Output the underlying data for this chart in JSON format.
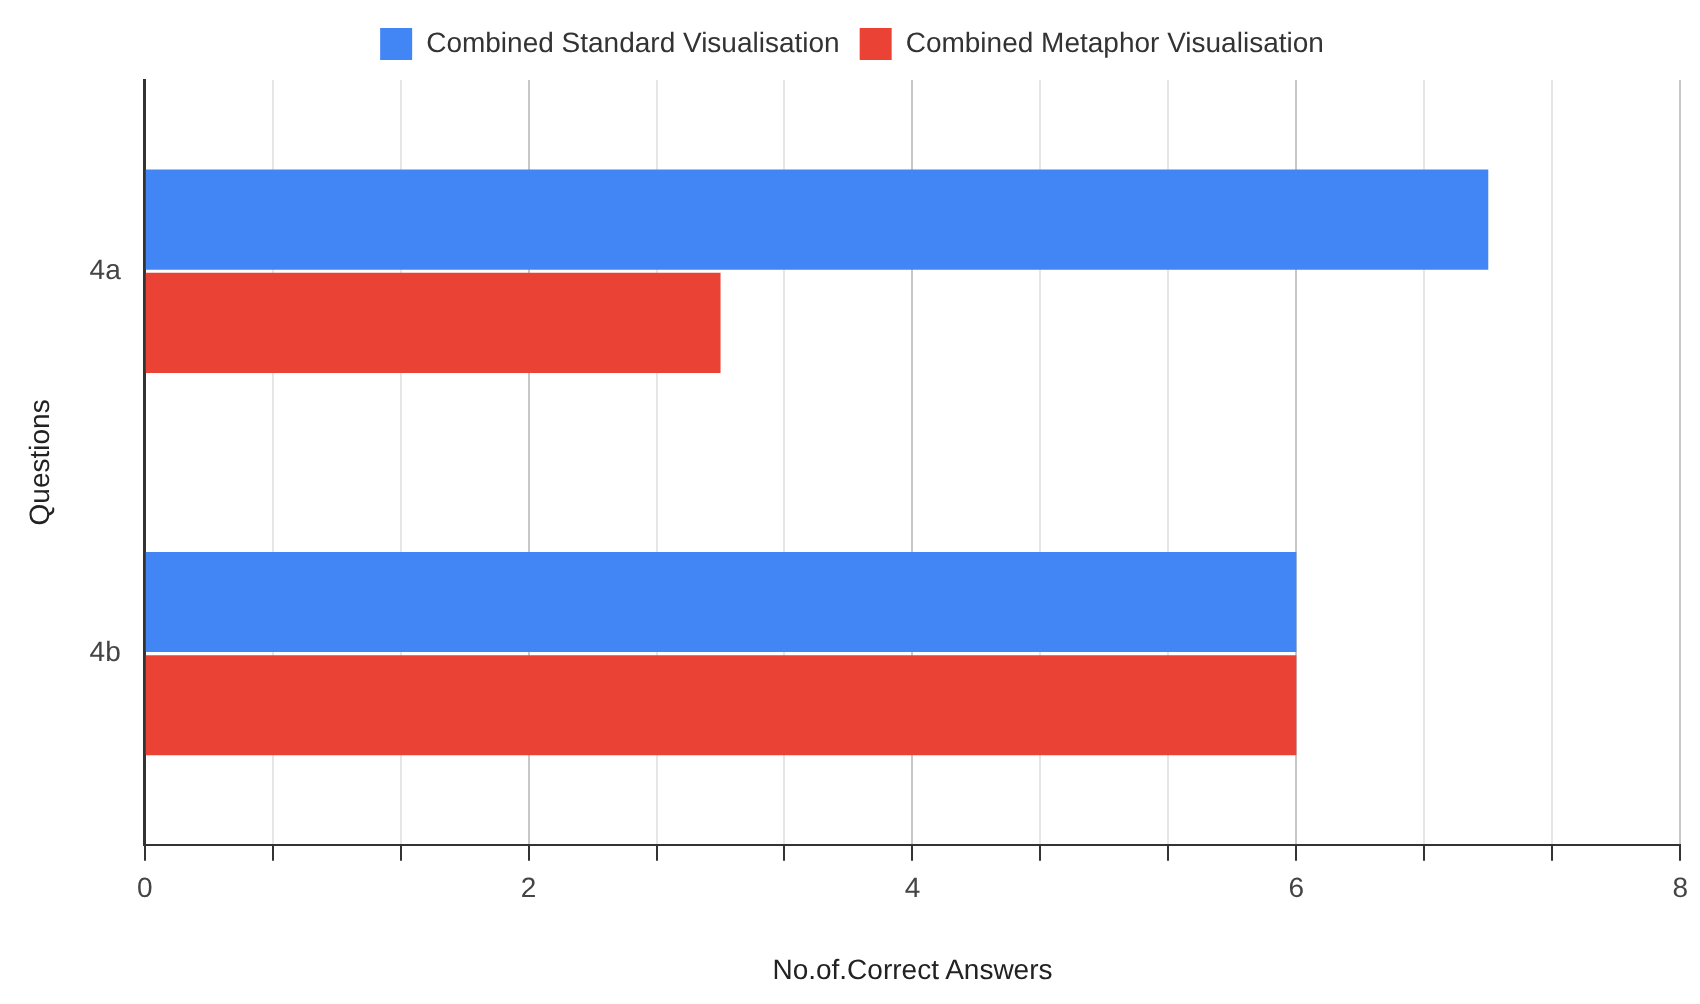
{
  "chart_data": {
    "type": "bar",
    "orientation": "horizontal",
    "xlabel": "No.of.Correct Answers",
    "ylabel": "Questions",
    "categories": [
      "4a",
      "4b"
    ],
    "series": [
      {
        "name": "Combined Standard Visualisation",
        "color": "#4285f4",
        "values": [
          7,
          6
        ]
      },
      {
        "name": "Combined Metaphor Visualisation",
        "color": "#ea4335",
        "values": [
          3,
          6
        ]
      }
    ],
    "xlim": [
      0,
      8
    ],
    "xticks": [
      0,
      {
        "value": 0.667,
        "label": null
      },
      {
        "value": 1.333,
        "label": null
      },
      2,
      {
        "value": 2.667,
        "label": null
      },
      {
        "value": 3.333,
        "label": null
      },
      4,
      {
        "value": 4.667,
        "label": null
      },
      {
        "value": 5.333,
        "label": null
      },
      6,
      {
        "value": 6.667,
        "label": null
      },
      {
        "value": 7.333,
        "label": null
      },
      8
    ],
    "grid": "x",
    "legend": "top"
  }
}
